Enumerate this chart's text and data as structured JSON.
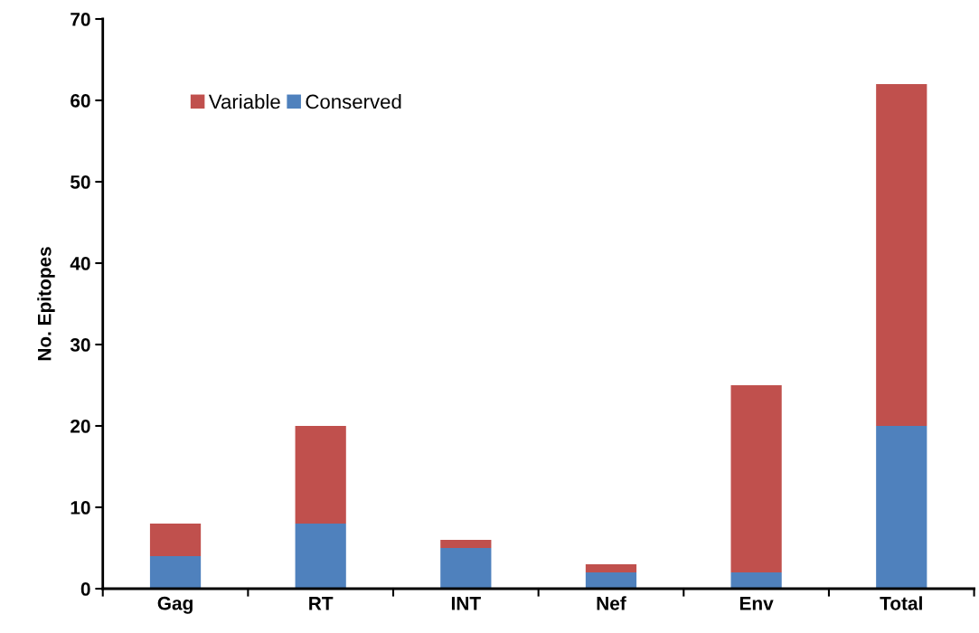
{
  "chart_data": {
    "type": "bar",
    "ylabel": "No. Epitopes",
    "stacked": true,
    "categories": [
      "Gag",
      "RT",
      "INT",
      "Nef",
      "Env",
      "Total"
    ],
    "series": [
      {
        "name": "Conserved",
        "color": "#4f81bd",
        "values": [
          4,
          8,
          5,
          2,
          2,
          20
        ]
      },
      {
        "name": "Variable",
        "color": "#c0504d",
        "values": [
          4,
          12,
          1,
          1,
          23,
          42
        ]
      }
    ],
    "ylim": [
      0,
      70
    ],
    "yticks": [
      0,
      10,
      20,
      30,
      40,
      50,
      60,
      70
    ],
    "grid": false,
    "legend": "top left"
  }
}
